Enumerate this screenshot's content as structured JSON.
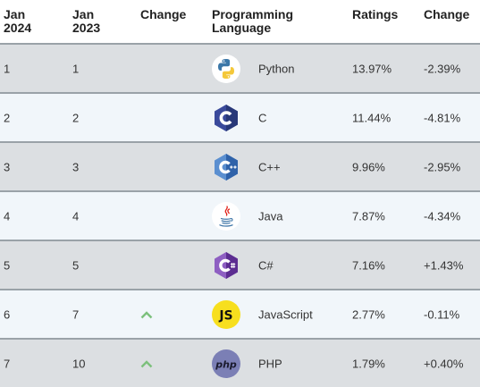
{
  "header": {
    "jan2024": [
      "Jan",
      "2024"
    ],
    "jan2023": [
      "Jan",
      "2023"
    ],
    "change": "Change",
    "language": [
      "Programming",
      "Language"
    ],
    "ratings": "Ratings",
    "change2": "Change"
  },
  "rows": [
    {
      "rank2024": "1",
      "rank2023": "1",
      "trend": "",
      "language": "Python",
      "rating": "13.97%",
      "change": "-2.39%",
      "logo": "python-logo-icon"
    },
    {
      "rank2024": "2",
      "rank2023": "2",
      "trend": "",
      "language": "C",
      "rating": "11.44%",
      "change": "-4.81%",
      "logo": "c-logo-icon"
    },
    {
      "rank2024": "3",
      "rank2023": "3",
      "trend": "",
      "language": "C++",
      "rating": "9.96%",
      "change": "-2.95%",
      "logo": "cpp-logo-icon"
    },
    {
      "rank2024": "4",
      "rank2023": "4",
      "trend": "",
      "language": "Java",
      "rating": "7.87%",
      "change": "-4.34%",
      "logo": "java-logo-icon"
    },
    {
      "rank2024": "5",
      "rank2023": "5",
      "trend": "",
      "language": "C#",
      "rating": "7.16%",
      "change": "+1.43%",
      "logo": "csharp-logo-icon"
    },
    {
      "rank2024": "6",
      "rank2023": "7",
      "trend": "up",
      "language": "JavaScript",
      "rating": "2.77%",
      "change": "-0.11%",
      "logo": "javascript-logo-icon"
    },
    {
      "rank2024": "7",
      "rank2023": "10",
      "trend": "up",
      "language": "PHP",
      "rating": "1.79%",
      "change": "+0.40%",
      "logo": "php-logo-icon"
    }
  ],
  "logo_text": {
    "javascript": "JS",
    "php": "php"
  },
  "colors": {
    "odd_row": "#dcdfe2",
    "even_row": "#f1f6fa",
    "border": "#9aa2a8",
    "trend_up": "#7cc07c"
  }
}
